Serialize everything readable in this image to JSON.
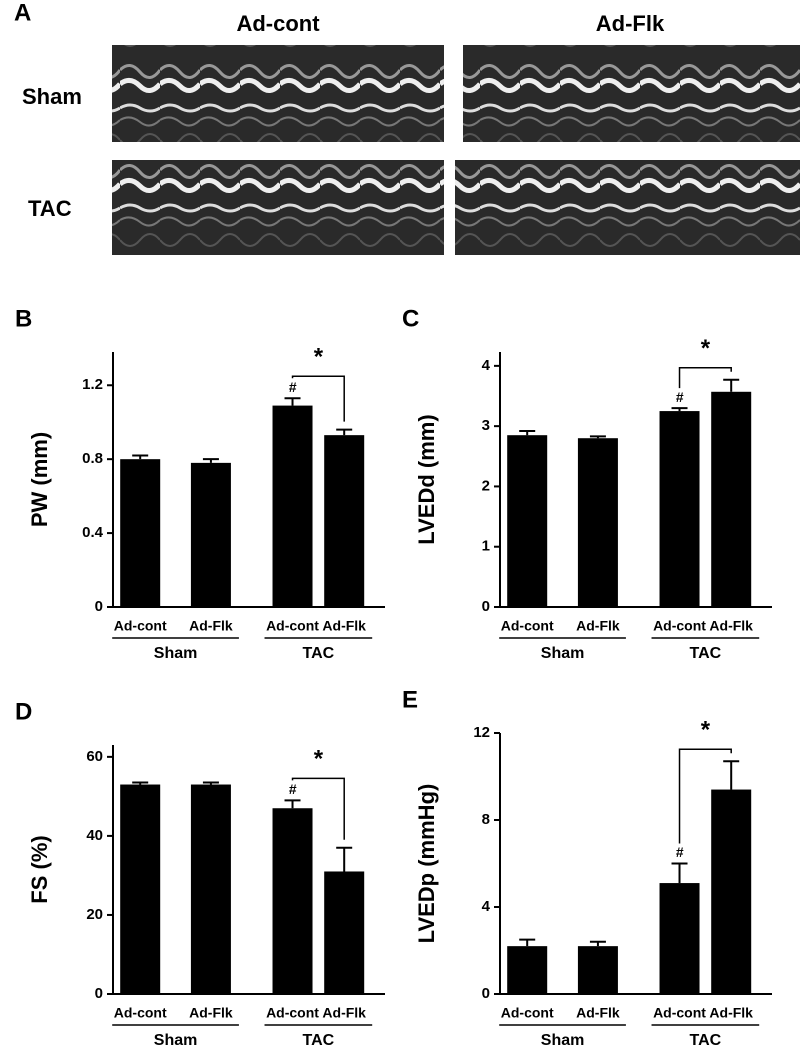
{
  "panel_a": {
    "label": "A",
    "columns": [
      "Ad-cont",
      "Ad-Flk"
    ],
    "rows": [
      "Sham",
      "TAC"
    ]
  },
  "chart_data": [
    {
      "type": "bar",
      "panel": "B",
      "ylabel": "PW (mm)",
      "categories": [
        "Ad-cont",
        "Ad-Flk",
        "Ad-cont",
        "Ad-Flk"
      ],
      "groups": [
        "Sham",
        "TAC"
      ],
      "values": [
        0.8,
        0.78,
        1.09,
        0.93
      ],
      "errors": [
        0.02,
        0.02,
        0.04,
        0.03
      ],
      "color": "#000000",
      "ylim": [
        0,
        1.38
      ],
      "yticks": [
        0,
        0.4,
        0.8,
        1.2
      ],
      "annotations": [
        "#",
        "*"
      ]
    },
    {
      "type": "bar",
      "panel": "C",
      "ylabel": "LVEDd (mm)",
      "categories": [
        "Ad-cont",
        "Ad-Flk",
        "Ad-cont",
        "Ad-Flk"
      ],
      "groups": [
        "Sham",
        "TAC"
      ],
      "values": [
        2.85,
        2.8,
        3.25,
        3.57
      ],
      "errors": [
        0.07,
        0.03,
        0.05,
        0.2
      ],
      "color": "#000000",
      "ylim": [
        0,
        4.23
      ],
      "yticks": [
        0,
        1,
        2,
        3,
        4
      ],
      "annotations": [
        "#",
        "*"
      ]
    },
    {
      "type": "bar",
      "panel": "D",
      "ylabel": "FS (%)",
      "categories": [
        "Ad-cont",
        "Ad-Flk",
        "Ad-cont",
        "Ad-Flk"
      ],
      "groups": [
        "Sham",
        "TAC"
      ],
      "values": [
        53,
        53,
        47,
        31
      ],
      "errors": [
        0.5,
        0.5,
        2,
        6
      ],
      "color": "#000000",
      "ylim": [
        0,
        63
      ],
      "yticks": [
        0,
        20,
        40,
        60
      ],
      "annotations": [
        "#",
        "*"
      ]
    },
    {
      "type": "bar",
      "panel": "E",
      "ylabel": "LVEDp (mmHg)",
      "categories": [
        "Ad-cont",
        "Ad-Flk",
        "Ad-cont",
        "Ad-Flk"
      ],
      "groups": [
        "Sham",
        "TAC"
      ],
      "values": [
        2.2,
        2.2,
        5.1,
        9.4
      ],
      "errors": [
        0.3,
        0.2,
        0.9,
        1.3
      ],
      "color": "#000000",
      "ylim": [
        0,
        12
      ],
      "yticks": [
        0,
        4,
        8,
        12
      ],
      "annotations": [
        "#",
        "*"
      ]
    }
  ]
}
